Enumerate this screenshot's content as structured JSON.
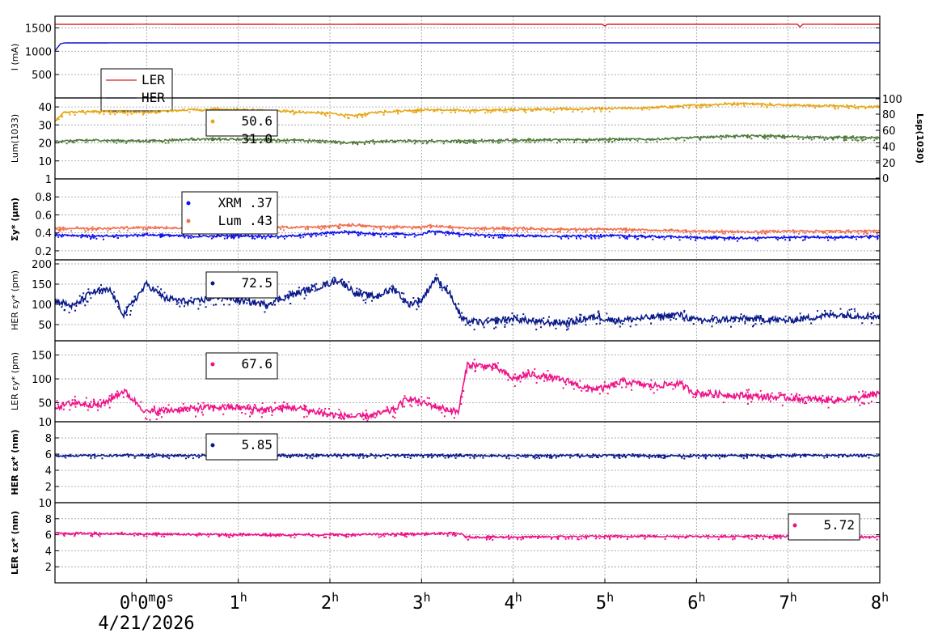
{
  "chart_data": {
    "type": "line",
    "x_axis": {
      "unit": "h",
      "range": [
        -1,
        8
      ],
      "ticks": [
        {
          "value": 0,
          "label": "0h0m0s"
        },
        {
          "value": 1,
          "label": "1h"
        },
        {
          "value": 2,
          "label": "2h"
        },
        {
          "value": 3,
          "label": "3h"
        },
        {
          "value": 4,
          "label": "4h"
        },
        {
          "value": 5,
          "label": "5h"
        },
        {
          "value": 6,
          "label": "6h"
        },
        {
          "value": 7,
          "label": "7h"
        },
        {
          "value": 8,
          "label": "8h"
        }
      ],
      "date_label": "4/21/2026"
    },
    "grid": true,
    "panels": [
      {
        "id": "current",
        "ylabel": "I (mA)",
        "ylim": [
          0,
          1750
        ],
        "yticks": [
          500,
          1000,
          1500
        ],
        "legend": {
          "placement": "left",
          "entries": [
            {
              "name": "LER",
              "value": ""
            },
            {
              "name": "HER",
              "value": ""
            }
          ]
        },
        "series": [
          {
            "name": "LER",
            "color": "#dd2222",
            "points": [
              [
                -1,
                1575
              ],
              [
                0,
                1578
              ],
              [
                2,
                1575
              ],
              [
                3,
                1578
              ],
              [
                4,
                1576
              ],
              [
                4.99,
                1577
              ],
              [
                5.0,
                1540
              ],
              [
                5.02,
                1577
              ],
              [
                6,
                1576
              ],
              [
                7.1,
                1578
              ],
              [
                7.13,
                1520
              ],
              [
                7.16,
                1578
              ],
              [
                8,
                1577
              ]
            ]
          },
          {
            "name": "HER",
            "color": "#1111cc",
            "points": [
              [
                -1,
                1010
              ],
              [
                -0.94,
                1160
              ],
              [
                -0.9,
                1178
              ],
              [
                0,
                1180
              ],
              [
                2,
                1180
              ],
              [
                4,
                1180
              ],
              [
                6,
                1180
              ],
              [
                8,
                1180
              ]
            ]
          }
        ]
      },
      {
        "id": "luminosity",
        "ylabel": "Lum(1033)",
        "ylim": [
          0,
          45
        ],
        "yticks": [
          10,
          20,
          30,
          40
        ],
        "y2label": "Lsp(1030)",
        "y2lim": [
          0,
          100
        ],
        "y2ticks": [
          0,
          20,
          40,
          60,
          80,
          100
        ],
        "legend": {
          "placement": "center",
          "entries": [
            {
              "name": "",
              "value": "50.6"
            },
            {
              "name": "",
              "value": "31.0"
            }
          ]
        },
        "series": [
          {
            "name": "",
            "color": "#e6a817",
            "points": [
              [
                -1,
                32
              ],
              [
                -0.9,
                37
              ],
              [
                -0.5,
                37.5
              ],
              [
                0,
                37
              ],
              [
                0.5,
                38.5
              ],
              [
                1,
                38.5
              ],
              [
                1.5,
                37.5
              ],
              [
                2,
                36.5
              ],
              [
                2.25,
                35
              ],
              [
                2.5,
                37
              ],
              [
                3,
                38.5
              ],
              [
                3.5,
                38
              ],
              [
                4,
                38.5
              ],
              [
                5,
                39
              ],
              [
                5.5,
                39.5
              ],
              [
                6,
                41
              ],
              [
                6.5,
                42
              ],
              [
                7,
                41
              ],
              [
                7.5,
                40.5
              ],
              [
                8,
                40
              ]
            ]
          },
          {
            "name": "",
            "color": "#4e7a3a",
            "points": [
              [
                -1,
                21
              ],
              [
                -0.5,
                21.5
              ],
              [
                0,
                21
              ],
              [
                0.5,
                22
              ],
              [
                1,
                22
              ],
              [
                1.5,
                21.5
              ],
              [
                2,
                21
              ],
              [
                2.2,
                20
              ],
              [
                2.5,
                21
              ],
              [
                3,
                21
              ],
              [
                3.5,
                21
              ],
              [
                4,
                21.5
              ],
              [
                5,
                22
              ],
              [
                5.5,
                22
              ],
              [
                6,
                23
              ],
              [
                6.5,
                24
              ],
              [
                7,
                23.5
              ],
              [
                7.5,
                23
              ],
              [
                8,
                23
              ]
            ]
          }
        ]
      },
      {
        "id": "sigma_y",
        "ylabel": "Σy* (μm)",
        "ylim": [
          0.1,
          1
        ],
        "yticks": [
          0.2,
          0.4,
          0.6,
          0.8,
          1
        ],
        "legend": {
          "placement": "center",
          "entries": [
            {
              "name": "XRM",
              "value": ".37"
            },
            {
              "name": "Lum",
              "value": ".43"
            }
          ]
        },
        "series": [
          {
            "name": "XRM",
            "color": "#1111ee",
            "points": [
              [
                -1,
                0.38
              ],
              [
                -0.5,
                0.36
              ],
              [
                0,
                0.38
              ],
              [
                0.5,
                0.36
              ],
              [
                1,
                0.37
              ],
              [
                1.5,
                0.36
              ],
              [
                2,
                0.4
              ],
              [
                2.2,
                0.41
              ],
              [
                2.5,
                0.39
              ],
              [
                3,
                0.38
              ],
              [
                3.1,
                0.42
              ],
              [
                3.5,
                0.38
              ],
              [
                4,
                0.37
              ],
              [
                4.5,
                0.36
              ],
              [
                5,
                0.37
              ],
              [
                5.5,
                0.36
              ],
              [
                6,
                0.35
              ],
              [
                6.5,
                0.34
              ],
              [
                7,
                0.35
              ],
              [
                7.5,
                0.35
              ],
              [
                8,
                0.36
              ]
            ]
          },
          {
            "name": "Lum",
            "color": "#f07050",
            "points": [
              [
                -1,
                0.45
              ],
              [
                -0.5,
                0.45
              ],
              [
                0,
                0.46
              ],
              [
                0.5,
                0.45
              ],
              [
                1,
                0.46
              ],
              [
                1.5,
                0.46
              ],
              [
                2,
                0.47
              ],
              [
                2.2,
                0.49
              ],
              [
                2.5,
                0.47
              ],
              [
                3,
                0.46
              ],
              [
                3.1,
                0.48
              ],
              [
                3.5,
                0.45
              ],
              [
                4,
                0.45
              ],
              [
                4.5,
                0.44
              ],
              [
                5,
                0.44
              ],
              [
                5.5,
                0.43
              ],
              [
                6,
                0.42
              ],
              [
                6.5,
                0.41
              ],
              [
                7,
                0.42
              ],
              [
                7.5,
                0.42
              ],
              [
                8,
                0.42
              ]
            ]
          }
        ]
      },
      {
        "id": "her_eps_y",
        "ylabel": "HER εy* (pm)",
        "ylim": [
          10,
          210
        ],
        "yticks": [
          50,
          100,
          150,
          200
        ],
        "legend": {
          "placement": "center",
          "entries": [
            {
              "name": "",
              "value": "72.5"
            }
          ]
        },
        "series": [
          {
            "name": "",
            "color": "#0a1a8a",
            "points": [
              [
                -1,
                110
              ],
              [
                -0.8,
                95
              ],
              [
                -0.6,
                130
              ],
              [
                -0.4,
                135
              ],
              [
                -0.25,
                75
              ],
              [
                0,
                150
              ],
              [
                0.2,
                115
              ],
              [
                0.5,
                105
              ],
              [
                0.8,
                120
              ],
              [
                1,
                110
              ],
              [
                1.3,
                100
              ],
              [
                1.6,
                125
              ],
              [
                1.9,
                145
              ],
              [
                2.1,
                160
              ],
              [
                2.3,
                125
              ],
              [
                2.5,
                120
              ],
              [
                2.7,
                140
              ],
              [
                2.85,
                100
              ],
              [
                3.0,
                110
              ],
              [
                3.15,
                165
              ],
              [
                3.3,
                130
              ],
              [
                3.45,
                60
              ],
              [
                3.7,
                55
              ],
              [
                4.0,
                65
              ],
              [
                4.3,
                55
              ],
              [
                4.6,
                55
              ],
              [
                4.9,
                70
              ],
              [
                5.1,
                60
              ],
              [
                5.4,
                65
              ],
              [
                5.8,
                75
              ],
              [
                6.0,
                60
              ],
              [
                6.5,
                65
              ],
              [
                7.0,
                60
              ],
              [
                7.5,
                75
              ],
              [
                8,
                70
              ]
            ]
          }
        ]
      },
      {
        "id": "ler_eps_y",
        "ylabel": "LER εy* (pm)",
        "ylim": [
          10,
          180
        ],
        "yticks": [
          10,
          50,
          100,
          150
        ],
        "legend": {
          "placement": "center",
          "entries": [
            {
              "name": "",
              "value": "67.6"
            }
          ]
        },
        "series": [
          {
            "name": "",
            "color": "#ee1188",
            "points": [
              [
                -1,
                40
              ],
              [
                -0.8,
                50
              ],
              [
                -0.5,
                45
              ],
              [
                -0.25,
                75
              ],
              [
                0,
                30
              ],
              [
                0.3,
                35
              ],
              [
                0.7,
                40
              ],
              [
                1.0,
                40
              ],
              [
                1.3,
                35
              ],
              [
                1.6,
                40
              ],
              [
                2.0,
                25
              ],
              [
                2.3,
                20
              ],
              [
                2.5,
                25
              ],
              [
                2.7,
                35
              ],
              [
                2.85,
                60
              ],
              [
                3.0,
                50
              ],
              [
                3.2,
                40
              ],
              [
                3.4,
                30
              ],
              [
                3.5,
                130
              ],
              [
                3.8,
                125
              ],
              [
                4.0,
                100
              ],
              [
                4.2,
                110
              ],
              [
                4.6,
                95
              ],
              [
                4.8,
                80
              ],
              [
                5.0,
                80
              ],
              [
                5.2,
                95
              ],
              [
                5.5,
                85
              ],
              [
                5.8,
                90
              ],
              [
                6.0,
                70
              ],
              [
                6.5,
                65
              ],
              [
                7.0,
                60
              ],
              [
                7.5,
                55
              ],
              [
                7.8,
                60
              ],
              [
                8,
                70
              ]
            ]
          }
        ]
      },
      {
        "id": "her_eps_x",
        "ylabel": "HER εx* (nm)",
        "ylim": [
          0,
          10
        ],
        "yticks": [
          2,
          4,
          6,
          8
        ],
        "legend": {
          "placement": "center",
          "entries": [
            {
              "name": "",
              "value": "5.85"
            }
          ]
        },
        "series": [
          {
            "name": "",
            "color": "#0a1a8a",
            "points": [
              [
                -1,
                5.8
              ],
              [
                0,
                5.85
              ],
              [
                1,
                5.8
              ],
              [
                2,
                5.85
              ],
              [
                3,
                5.85
              ],
              [
                4,
                5.8
              ],
              [
                5,
                5.85
              ],
              [
                6,
                5.8
              ],
              [
                7,
                5.85
              ],
              [
                8,
                5.85
              ]
            ]
          }
        ]
      },
      {
        "id": "ler_eps_x",
        "ylabel": "LER εx* (nm)",
        "ylim": [
          0,
          10
        ],
        "yticks": [
          2,
          4,
          6,
          8,
          10
        ],
        "legend": {
          "placement": "right",
          "entries": [
            {
              "name": "",
              "value": "5.72"
            }
          ]
        },
        "series": [
          {
            "name": "",
            "color": "#ee1188",
            "points": [
              [
                -1,
                6.2
              ],
              [
                0,
                6.1
              ],
              [
                1,
                6.0
              ],
              [
                2,
                6.0
              ],
              [
                3,
                6.1
              ],
              [
                3.4,
                6.2
              ],
              [
                3.5,
                5.7
              ],
              [
                4,
                5.7
              ],
              [
                5,
                5.8
              ],
              [
                6,
                5.8
              ],
              [
                7,
                5.8
              ],
              [
                8,
                5.7
              ]
            ]
          }
        ]
      }
    ]
  }
}
